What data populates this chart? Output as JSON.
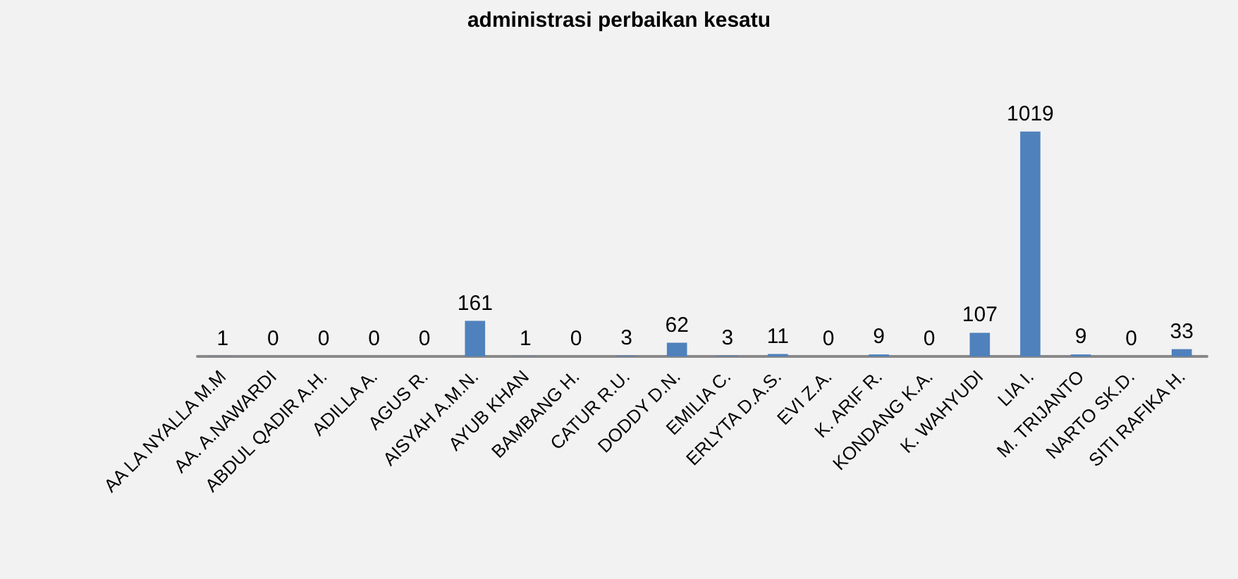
{
  "chart_data": {
    "type": "bar",
    "title": "administrasi perbaikan kesatu",
    "categories": [
      "AA LA NYALLA M.M",
      "AA. A.NAWARDI",
      "ABDUL QADIR A.H.",
      "ADILLA A.",
      "AGUS R.",
      "AISYAH A.M.N.",
      "AYUB KHAN",
      "BAMBANG H.",
      "CATUR R.U.",
      "DODDY D.N.",
      "EMILIA C.",
      "ERLYTA D.A.S.",
      "EVI Z.A.",
      "K. ARIF R.",
      "KONDANG K.A.",
      "K. WAHYUDI",
      "LIA I.",
      "M. TRIJANTO",
      "NARTO SK.D.",
      "SITI RAFIKA H."
    ],
    "values": [
      1,
      0,
      0,
      0,
      0,
      161,
      1,
      0,
      3,
      62,
      3,
      11,
      0,
      9,
      0,
      107,
      1019,
      9,
      0,
      33
    ],
    "color": "#4f81bd",
    "data_labels": true
  }
}
